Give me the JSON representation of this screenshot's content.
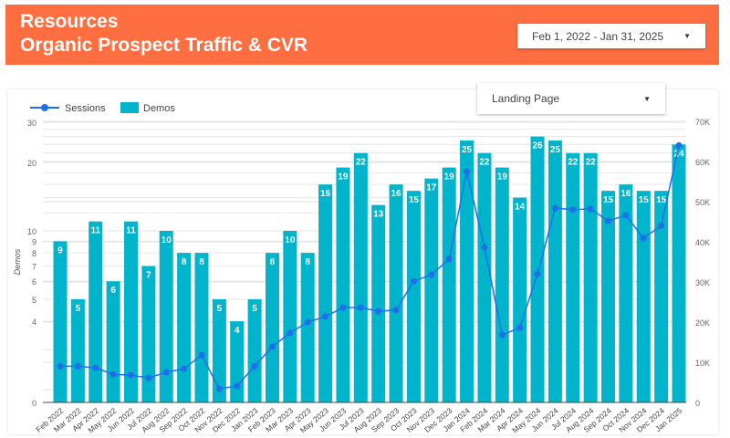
{
  "header": {
    "line1": "Resources",
    "line2": "Organic Prospect Traffic & CVR",
    "date_range": "Feb 1, 2022 - Jan 31, 2025"
  },
  "filter": {
    "label": "Landing Page"
  },
  "colors": {
    "header": "#FE6E41",
    "bars": "#00B4CC",
    "line": "#1E6FE8"
  },
  "chart_data": {
    "type": "bar",
    "legend": [
      "Sessions",
      "Demos"
    ],
    "legend_position": "top-left",
    "ylabel": "Demos",
    "y_scale": "log",
    "y_ticks": [
      "0",
      "4",
      "5",
      "6",
      "7",
      "8",
      "9",
      "10",
      "20",
      "30"
    ],
    "y2_ticks": [
      "0",
      "10K",
      "20K",
      "30K",
      "40K",
      "50K",
      "60K",
      "70K"
    ],
    "y2lim": [
      0,
      70000
    ],
    "categories": [
      "Feb 2022",
      "Mar 2022",
      "Apr 2022",
      "May 2022",
      "Jun 2022",
      "Jul 2022",
      "Aug 2022",
      "Sep 2022",
      "Oct 2022",
      "Nov 2022",
      "Dec 2022",
      "Jan 2023",
      "Feb 2023",
      "Mar 2023",
      "Apr 2023",
      "May 2023",
      "Jun 2023",
      "Jul 2023",
      "Aug 2023",
      "Sep 2023",
      "Oct 2023",
      "Nov 2023",
      "Dec 2023",
      "Jan 2024",
      "Feb 2024",
      "Mar 2024",
      "Apr 2024",
      "May 2024",
      "Jun 2024",
      "Jul 2024",
      "Aug 2024",
      "Sep 2024",
      "Oct 2024",
      "Nov 2024",
      "Dec 2024",
      "Jan 2025"
    ],
    "series": [
      {
        "name": "Demos",
        "type": "bar",
        "axis": "left",
        "values": [
          9,
          5,
          11,
          6,
          11,
          7,
          10,
          8,
          8,
          5,
          4,
          5,
          8,
          10,
          8,
          16,
          19,
          22,
          13,
          16,
          15,
          17,
          19,
          25,
          22,
          19,
          14,
          26,
          25,
          22,
          22,
          15,
          16,
          15,
          15,
          24
        ]
      },
      {
        "name": "Sessions",
        "type": "line",
        "axis": "right",
        "values": [
          9000,
          9000,
          8600,
          7000,
          6800,
          6100,
          7500,
          8400,
          11800,
          3400,
          4100,
          9000,
          13900,
          17300,
          20000,
          21400,
          23600,
          23600,
          22700,
          23000,
          30200,
          31800,
          35700,
          57500,
          38600,
          16800,
          18600,
          32000,
          48400,
          48000,
          48200,
          45200,
          46600,
          40900,
          44000,
          64000
        ]
      }
    ]
  }
}
